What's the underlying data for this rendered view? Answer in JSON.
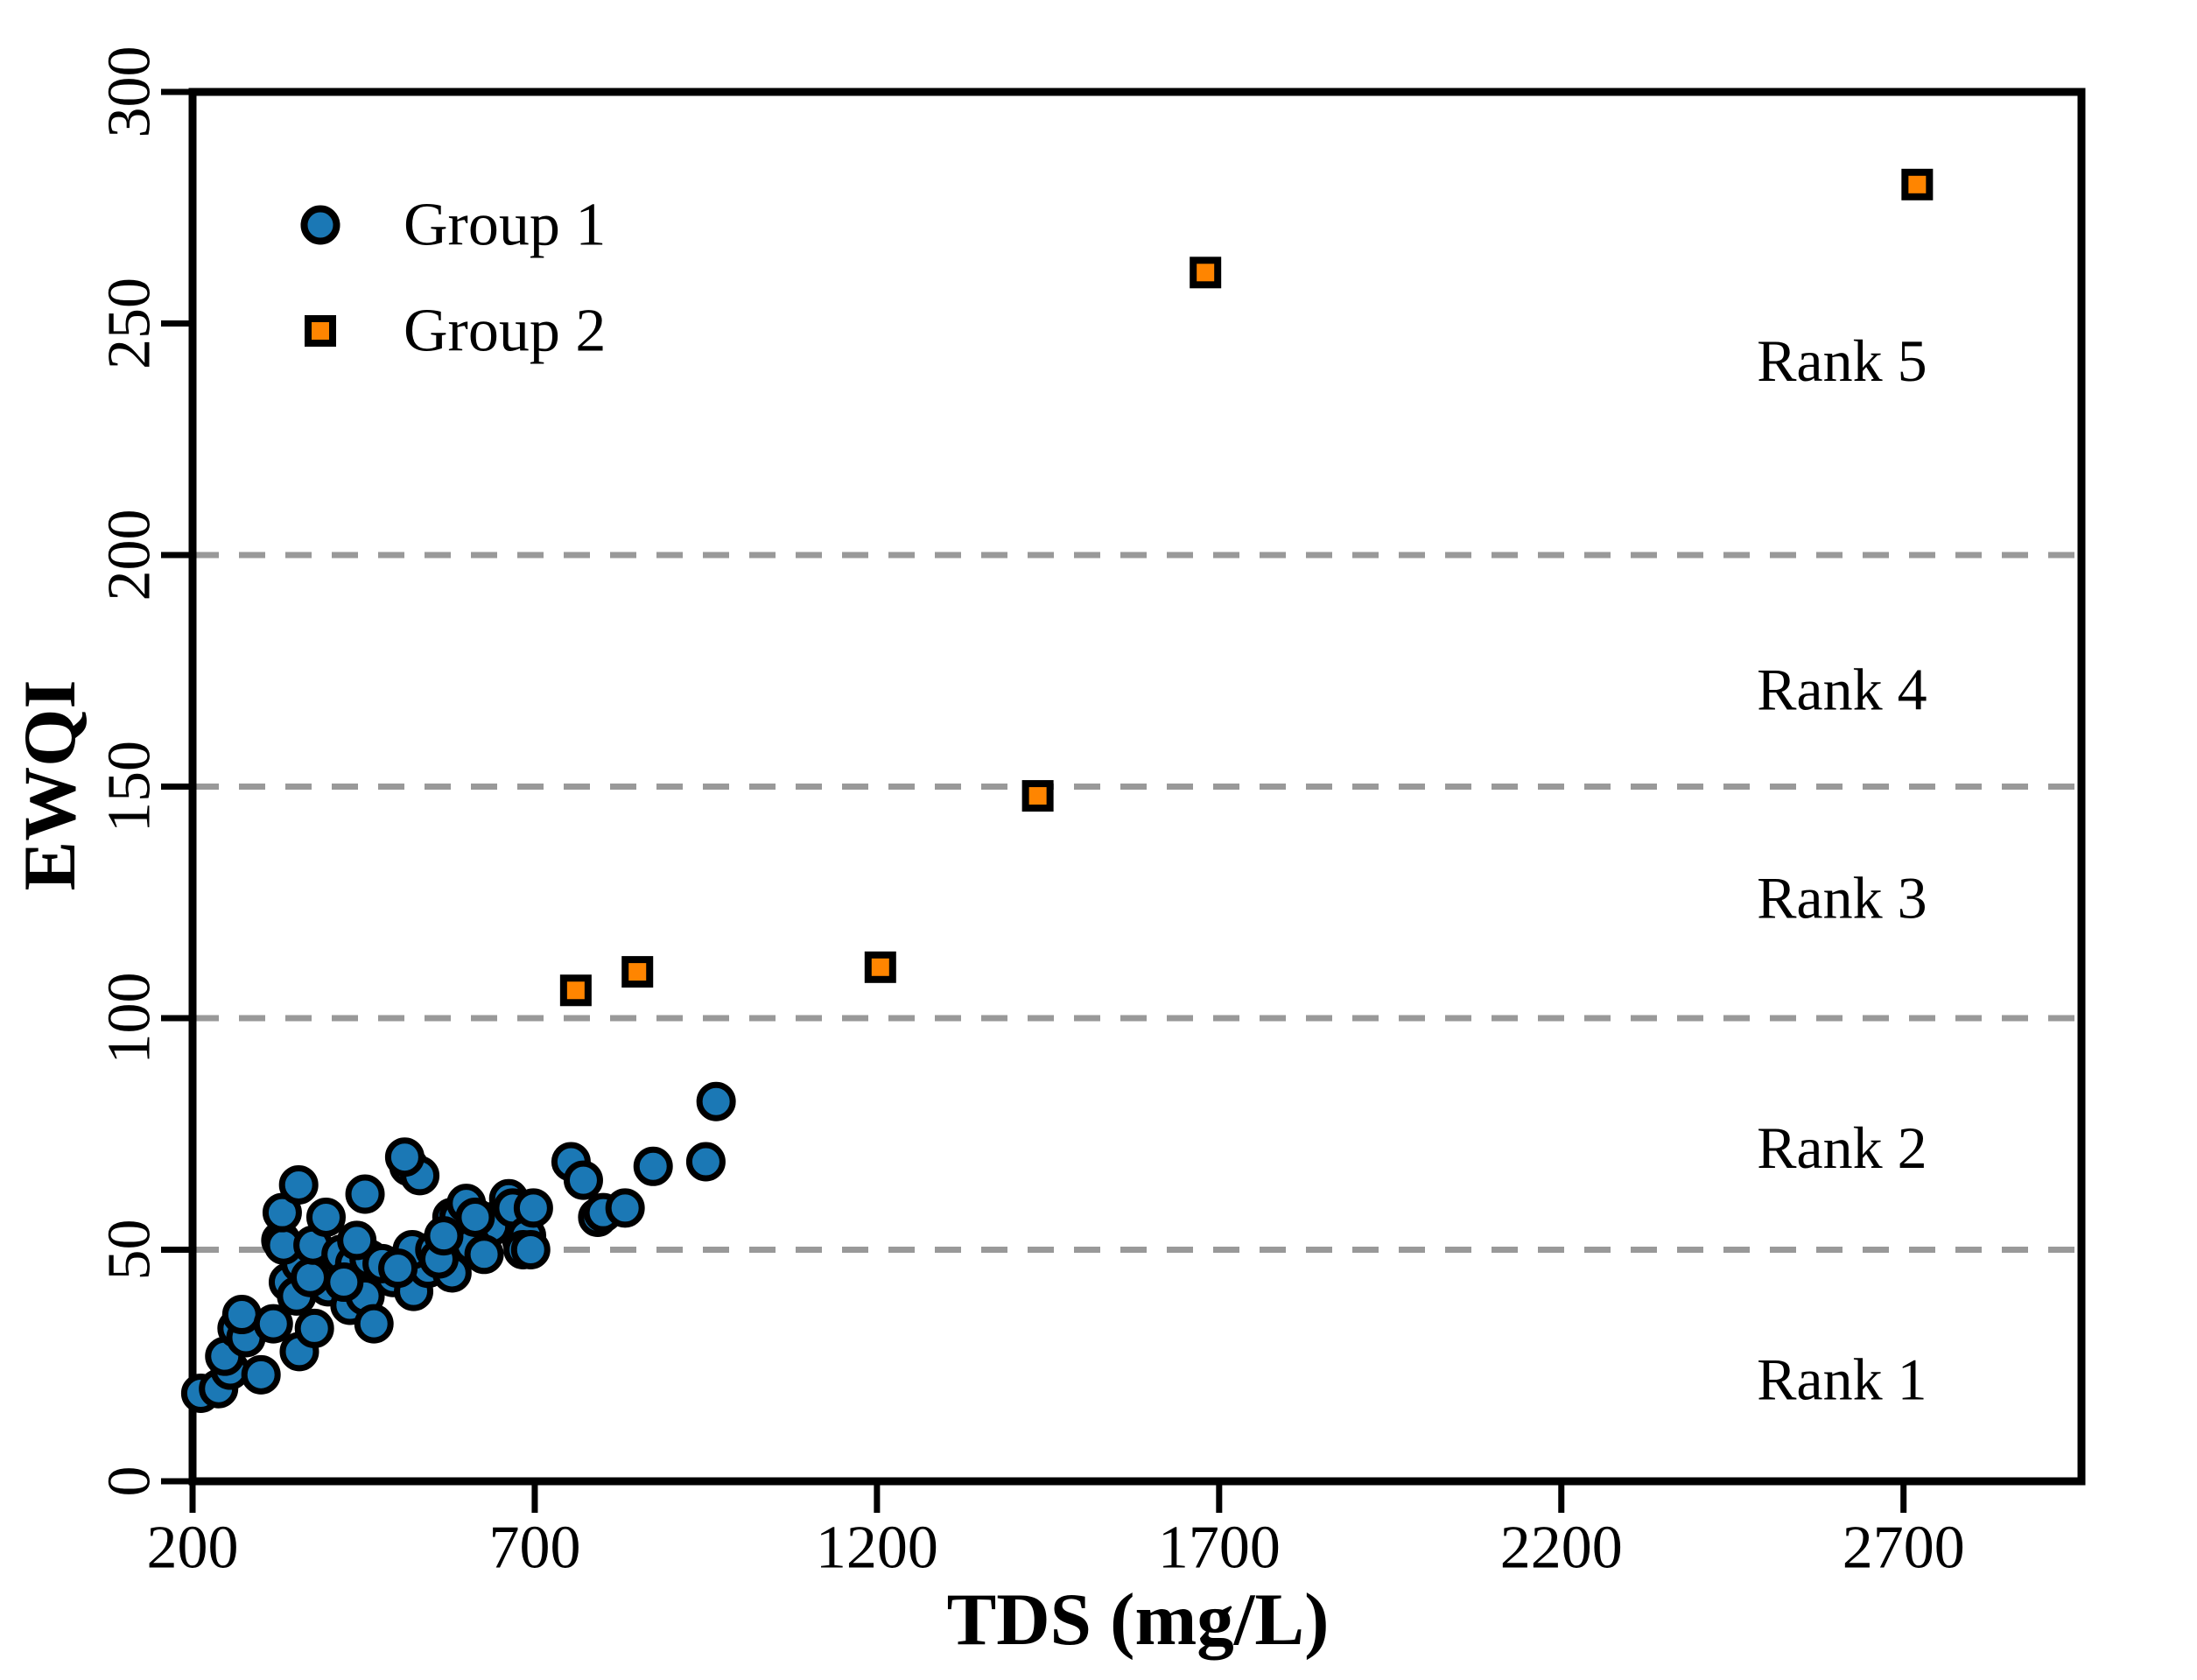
{
  "chart_data": {
    "type": "scatter",
    "title": "",
    "xlabel": "TDS (mg/L)",
    "ylabel": "EWQI",
    "xlim": [
      200,
      2960
    ],
    "ylim": [
      0,
      300
    ],
    "x_ticks": [
      200,
      700,
      1200,
      1700,
      2200,
      2700
    ],
    "y_ticks": [
      0,
      50,
      100,
      150,
      200,
      250,
      300
    ],
    "gridlines_y": [
      50,
      100,
      150,
      200
    ],
    "grid_on": true,
    "legend_position": "upper-left-inside",
    "colors": {
      "group1_fill": "#1b78b5",
      "group2_fill": "#ff8500",
      "marker_edge": "#000000",
      "gridline": "#999999",
      "axis": "#000000"
    },
    "series": [
      {
        "name": "Group 1",
        "marker": "circle",
        "points": [
          [
            212,
            19
          ],
          [
            238,
            20
          ],
          [
            255,
            24
          ],
          [
            247,
            27
          ],
          [
            300,
            23
          ],
          [
            265,
            33
          ],
          [
            278,
            31
          ],
          [
            272,
            36
          ],
          [
            318,
            34
          ],
          [
            356,
            28
          ],
          [
            340,
            43
          ],
          [
            352,
            40
          ],
          [
            378,
            33
          ],
          [
            382,
            46
          ],
          [
            398,
            42
          ],
          [
            412,
            47
          ],
          [
            430,
            38
          ],
          [
            448,
            45
          ],
          [
            452,
            40
          ],
          [
            465,
            34
          ],
          [
            493,
            44
          ],
          [
            523,
            41
          ],
          [
            544,
            46
          ],
          [
            358,
            47
          ],
          [
            372,
            44
          ],
          [
            329,
            52
          ],
          [
            333,
            51
          ],
          [
            376,
            51
          ],
          [
            395,
            57
          ],
          [
            331,
            58
          ],
          [
            355,
            64
          ],
          [
            452,
            62
          ],
          [
            516,
            68
          ],
          [
            532,
            66
          ],
          [
            510,
            70
          ],
          [
            521,
            50
          ],
          [
            554,
            50
          ],
          [
            579,
            57
          ],
          [
            589,
            57
          ],
          [
            579,
            45
          ],
          [
            600,
            60
          ],
          [
            634,
            56
          ],
          [
            637,
            55
          ],
          [
            662,
            61
          ],
          [
            668,
            59
          ],
          [
            681,
            52
          ],
          [
            688,
            53
          ],
          [
            683,
            50
          ],
          [
            694,
            50
          ],
          [
            698,
            59
          ],
          [
            753,
            69
          ],
          [
            771,
            65
          ],
          [
            792,
            57
          ],
          [
            800,
            58
          ],
          [
            832,
            59
          ],
          [
            873,
            68
          ],
          [
            950,
            69
          ],
          [
            965,
            82
          ],
          [
            417,
            49
          ],
          [
            437,
            47
          ],
          [
            458,
            48
          ],
          [
            477,
            47
          ],
          [
            500,
            46
          ],
          [
            560,
            48
          ],
          [
            608,
            51
          ],
          [
            626,
            49
          ],
          [
            567,
            53
          ],
          [
            613,
            57
          ],
          [
            421,
            43
          ],
          [
            440,
            52
          ]
        ]
      },
      {
        "name": "Group 2",
        "marker": "square",
        "points": [
          [
            760,
            106
          ],
          [
            850,
            110
          ],
          [
            1205,
            111
          ],
          [
            1435,
            148
          ],
          [
            1680,
            261
          ],
          [
            2720,
            280
          ]
        ]
      }
    ],
    "annotations": [
      {
        "text": "Rank 5",
        "x": 2610,
        "y": 242
      },
      {
        "text": "Rank 4",
        "x": 2610,
        "y": 171
      },
      {
        "text": "Rank 3",
        "x": 2610,
        "y": 126
      },
      {
        "text": "Rank 2",
        "x": 2610,
        "y": 72
      },
      {
        "text": "Rank 1",
        "x": 2610,
        "y": 22
      }
    ]
  },
  "legend": {
    "items": [
      {
        "label": "Group 1"
      },
      {
        "label": "Group 2"
      }
    ]
  }
}
